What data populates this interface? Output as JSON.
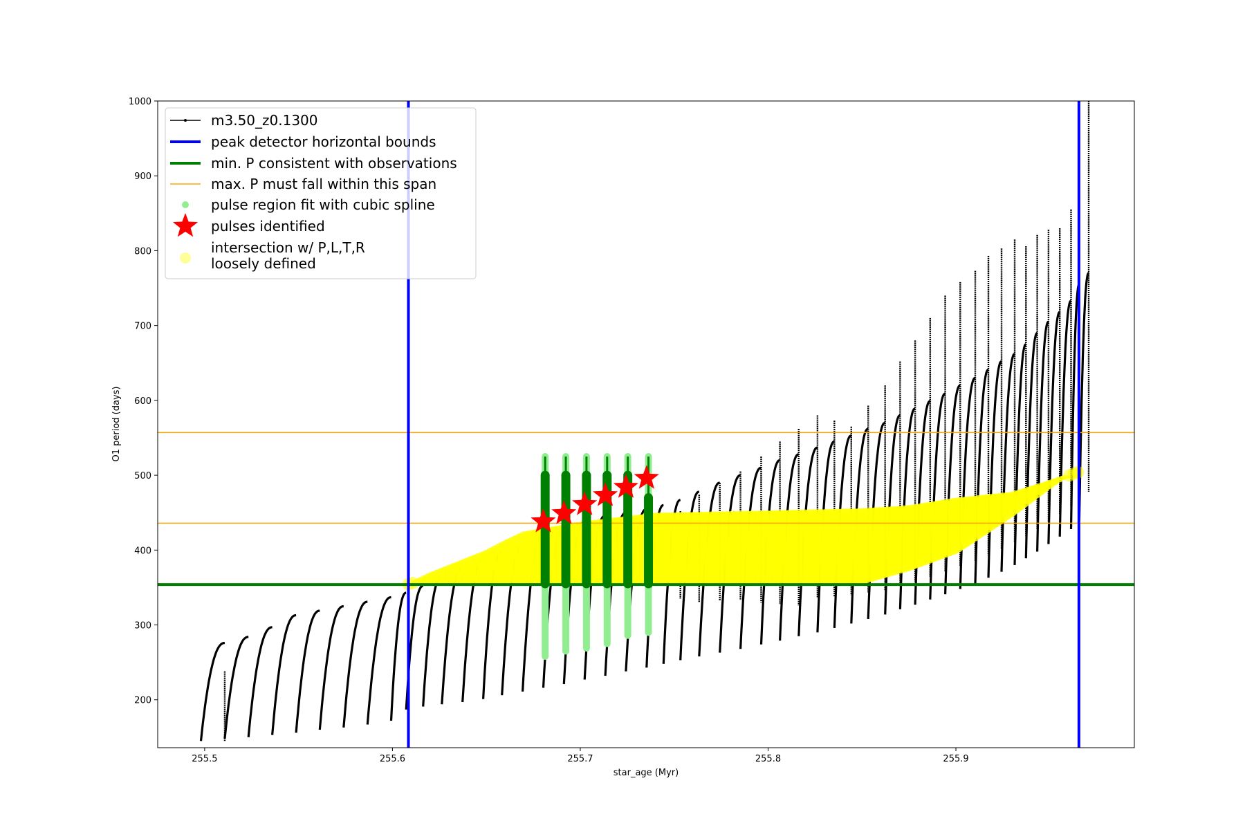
{
  "chart_data": {
    "type": "scatter",
    "xlabel": "star_age (Myr)",
    "ylabel": "O1 period (days)",
    "xlim": [
      255.475,
      255.995
    ],
    "ylim": [
      136,
      1000
    ],
    "xticks": [
      255.5,
      255.6,
      255.7,
      255.8,
      255.9
    ],
    "yticks": [
      200,
      300,
      400,
      500,
      600,
      700,
      800,
      900,
      1000
    ],
    "grid": false,
    "legend_position": "top-left",
    "legend": [
      {
        "label": "m3.50_z0.1300",
        "marker": "line-dot",
        "color": "#000000"
      },
      {
        "label": "peak detector horizontal bounds",
        "marker": "thick-line",
        "color": "#0000ff"
      },
      {
        "label": "min. P consistent with observations",
        "marker": "thick-line",
        "color": "#008000"
      },
      {
        "label": "max. P must fall within this span",
        "marker": "thin-line",
        "color": "#ffa500"
      },
      {
        "label": "pulse region fit with cubic spline",
        "marker": "dot",
        "color": "#90ee90"
      },
      {
        "label": "pulses identified",
        "marker": "star",
        "color": "#ff0000"
      },
      {
        "label": "intersection w/ P,L,T,R\nloosely defined",
        "marker": "big-dot",
        "color": "#ffff99"
      }
    ],
    "series": [
      {
        "name": "m3.50_z0.1300",
        "kind": "pulse-sawtooth",
        "color": "#000000",
        "pulse_ages": [
          255.498,
          255.5107,
          255.5233,
          255.536,
          255.5487,
          255.5613,
          255.574,
          255.5867,
          255.5993,
          255.6073,
          255.6163,
          255.6263,
          255.6373,
          255.6483,
          255.6583,
          255.6693,
          255.6803,
          255.6913,
          255.7023,
          255.7133,
          255.7243,
          255.7353,
          255.7443,
          255.7533,
          255.7633,
          255.7743,
          255.7853,
          255.7963,
          255.8063,
          255.8163,
          255.8263,
          255.8353,
          255.8443,
          255.8533,
          255.8623,
          255.8703,
          255.8783,
          255.8863,
          255.8943,
          255.9023,
          255.9103,
          255.9173,
          255.9243,
          255.9313,
          255.9373,
          255.9433,
          255.9493,
          255.9553,
          255.9613,
          255.9657
        ],
        "pulse_min": [
          145,
          148,
          150,
          153,
          156,
          160,
          163,
          167,
          172,
          187,
          191,
          194,
          197,
          201,
          206,
          211,
          216,
          221,
          227,
          232,
          238,
          243,
          248,
          253,
          258,
          263,
          268,
          274,
          279,
          285,
          290,
          296,
          302,
          308,
          314,
          321,
          327,
          334,
          341,
          348,
          355,
          363,
          371,
          380,
          389,
          398,
          408,
          418,
          428,
          440
        ],
        "pulse_max": [
          276,
          284,
          297,
          313,
          319,
          325,
          331,
          337,
          343,
          352,
          365,
          376,
          387,
          398,
          408,
          422,
          429,
          438,
          446,
          450,
          455,
          460,
          467,
          478,
          490,
          500,
          510,
          520,
          528,
          537,
          545,
          553,
          562,
          570,
          580,
          589,
          599,
          609,
          620,
          630,
          641,
          652,
          662,
          675,
          690,
          705,
          718,
          733,
          755,
          770
        ],
        "spike_top": [
          238,
          null,
          null,
          null,
          null,
          null,
          null,
          null,
          null,
          null,
          null,
          null,
          null,
          null,
          null,
          null,
          null,
          null,
          null,
          null,
          null,
          null,
          452,
          474,
          490,
          505,
          525,
          545,
          562,
          580,
          573,
          565,
          593,
          620,
          652,
          680,
          710,
          740,
          758,
          773,
          793,
          803,
          815,
          806,
          821,
          828,
          830,
          855,
          983,
          1000
        ],
        "spike_bottom": [
          null,
          null,
          null,
          null,
          null,
          null,
          null,
          null,
          null,
          null,
          null,
          null,
          null,
          null,
          null,
          null,
          null,
          null,
          null,
          null,
          null,
          null,
          335,
          330,
          332,
          333,
          330,
          328,
          326,
          336,
          338,
          340,
          343,
          346,
          352,
          358,
          364,
          371,
          378,
          385,
          393,
          401,
          410,
          419,
          428,
          438,
          448,
          458,
          468,
          478
        ]
      },
      {
        "name": "peak detector horizontal bounds",
        "kind": "vline",
        "x": [
          255.6085,
          255.9655
        ],
        "color": "#0000ff"
      },
      {
        "name": "min. P consistent with observations",
        "kind": "hline",
        "y": 354,
        "color": "#008000"
      },
      {
        "name": "max. P must fall within this span",
        "kind": "hline",
        "y": [
          436,
          557
        ],
        "color": "#ffa500"
      },
      {
        "name": "pulse region fit with cubic spline",
        "kind": "vertical-segments",
        "color": "#90ee90",
        "dark_color": "#008000",
        "x": [
          255.6813,
          255.6923,
          255.7033,
          255.7143,
          255.7253,
          255.7363
        ],
        "y_low": [
          258,
          265,
          269,
          275,
          286,
          290
        ],
        "y_high": [
          525,
          525,
          525,
          525,
          525,
          525
        ],
        "dark_low": [
          355,
          355,
          355,
          355,
          355,
          355
        ],
        "dark_high": [
          500,
          500,
          500,
          500,
          500,
          470
        ]
      },
      {
        "name": "pulses identified",
        "kind": "stars",
        "color": "#ff0000",
        "x": [
          255.6803,
          255.6913,
          255.7023,
          255.7133,
          255.7243,
          255.7353
        ],
        "y": [
          438,
          449,
          461,
          473,
          484,
          496
        ]
      },
      {
        "name": "intersection w/ P,L,T,R loosely defined",
        "kind": "yellow-bands",
        "color": "#ffff00",
        "x_start": 255.6085,
        "x_end": 255.9655,
        "y_low": 354,
        "max_series": [
          {
            "x": 255.6085,
            "y": 355
          },
          {
            "x": 255.62,
            "y": 370
          },
          {
            "x": 255.635,
            "y": 385
          },
          {
            "x": 255.65,
            "y": 400
          },
          {
            "x": 255.66,
            "y": 413
          },
          {
            "x": 255.67,
            "y": 425
          },
          {
            "x": 255.7,
            "y": 438
          },
          {
            "x": 255.74,
            "y": 450
          },
          {
            "x": 255.8,
            "y": 453
          },
          {
            "x": 255.85,
            "y": 456
          },
          {
            "x": 255.875,
            "y": 460
          },
          {
            "x": 255.9,
            "y": 470
          },
          {
            "x": 255.93,
            "y": 478
          },
          {
            "x": 255.965,
            "y": 505
          }
        ],
        "lower_edge": [
          {
            "x": 255.85,
            "y": 354
          },
          {
            "x": 255.875,
            "y": 372
          },
          {
            "x": 255.9,
            "y": 395
          },
          {
            "x": 255.93,
            "y": 445
          },
          {
            "x": 255.955,
            "y": 492
          },
          {
            "x": 255.965,
            "y": 503
          }
        ]
      }
    ]
  }
}
